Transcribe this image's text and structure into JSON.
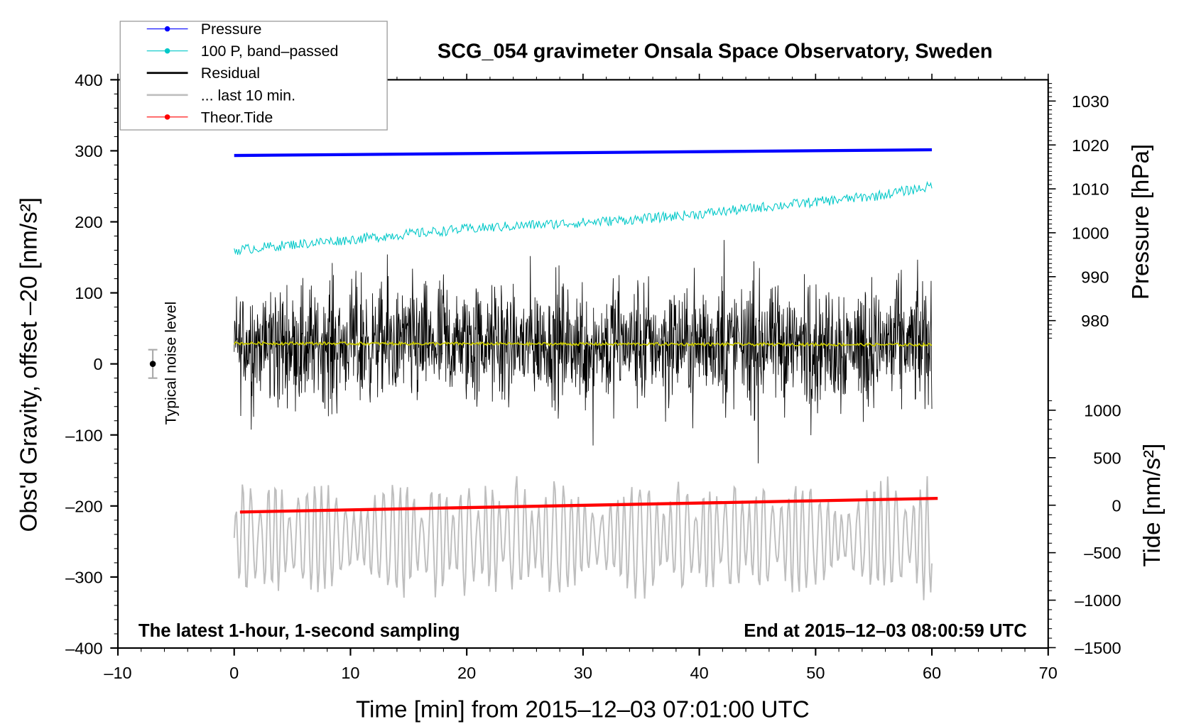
{
  "chart_data": {
    "type": "line",
    "title": "SCG_054 gravimeter Onsala Space Observatory, Sweden",
    "xlabel": "Time [min] from 2015–12–03 07:01:00 UTC",
    "ylabel": "Obs'd Gravity, offset –20 [nm/s²]",
    "ylabel_right_top": "Pressure [hPa]",
    "ylabel_right_bottom": "Tide [nm/s²]",
    "xlim": [
      -10,
      70
    ],
    "ylim": [
      -400,
      400
    ],
    "pressure_lim": [
      975,
      1035
    ],
    "tide_lim": [
      -1500,
      1000
    ],
    "xticks": [
      "–10",
      "0",
      "10",
      "20",
      "30",
      "40",
      "50",
      "60",
      "70"
    ],
    "yticks": [
      "400",
      "300",
      "200",
      "100",
      "0",
      "–100",
      "–200",
      "–300",
      "–400"
    ],
    "pressure_ticks": [
      "1030",
      "1020",
      "1010",
      "1000",
      "990",
      "980"
    ],
    "tide_ticks": [
      "1000",
      "500",
      "0",
      "–500",
      "–1000",
      "–1500"
    ],
    "annotation_left": "The latest 1-hour, 1-second sampling",
    "annotation_right": "End at 2015–12–03 08:00:59 UTC",
    "noise_label": "Typical noise level",
    "noise_bar": {
      "x": -7,
      "y": 0,
      "err": 20
    },
    "legend": [
      {
        "label": "Pressure",
        "color": "#0000ff",
        "marker": true
      },
      {
        "label": "100 P, band–passed",
        "color": "#00c8c8",
        "marker": true
      },
      {
        "label": "Residual",
        "color": "#000000",
        "marker": false
      },
      {
        "label": "... last 10 min.",
        "color": "#bebebe",
        "marker": false
      },
      {
        "label": "Theor.Tide",
        "color": "#ff0000",
        "marker": true
      }
    ],
    "series": [
      {
        "name": "Pressure",
        "axis": "pressure",
        "x": [
          0,
          60
        ],
        "values": [
          1017.6,
          1018.9
        ],
        "color": "#0000ff"
      },
      {
        "name": "100 P, band-passed",
        "axis": "gravity",
        "x": [
          0,
          5,
          10,
          15,
          20,
          25,
          30,
          35,
          40,
          45,
          50,
          55,
          60
        ],
        "values": [
          160,
          168,
          175,
          183,
          190,
          195,
          199,
          204,
          211,
          220,
          228,
          236,
          250
        ],
        "color": "#00c8c8"
      },
      {
        "name": "Residual",
        "axis": "gravity",
        "x_range": [
          0,
          60
        ],
        "mean": 28,
        "amplitude": 70,
        "color": "#000000"
      },
      {
        "name": "Residual smoothed",
        "axis": "gravity",
        "x": [
          0,
          60
        ],
        "values": [
          29,
          27
        ],
        "color": "#c8c800"
      },
      {
        "name": "... last 10 min.",
        "axis": "gravity",
        "x_range": [
          0,
          60
        ],
        "mean": -245,
        "amplitude": 60,
        "color": "#bebebe"
      },
      {
        "name": "Theor.Tide",
        "axis": "tide",
        "x": [
          0.5,
          60.5
        ],
        "values": [
          -72,
          72
        ],
        "color": "#ff0000"
      }
    ]
  }
}
